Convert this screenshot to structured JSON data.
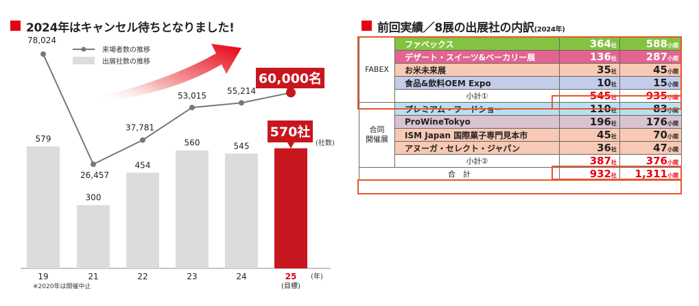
{
  "left_heading": "2024年はキャンセル待ちとなりました!",
  "right_heading": "前回実績／8展の出展社の内訳",
  "right_heading_year": "(2024年)",
  "chart_data": {
    "type": "bar",
    "categories": [
      "19",
      "21",
      "22",
      "23",
      "24",
      "25"
    ],
    "target_sublabel": "(目標)",
    "x_unit": "(年)",
    "note": "※2020年は開催中止",
    "bar_unit_label": "(社数)",
    "series": [
      {
        "name": "出展社数の推移",
        "type": "bar",
        "values": [
          579,
          300,
          454,
          560,
          545,
          570
        ]
      },
      {
        "name": "来場者数の推移",
        "type": "line",
        "values": [
          78024,
          26457,
          37781,
          53015,
          55214,
          60000
        ]
      }
    ],
    "bar_labels": [
      "579",
      "300",
      "454",
      "560",
      "545"
    ],
    "line_labels": [
      "78,024",
      "26,457",
      "37,781",
      "53,015",
      "55,214"
    ],
    "target_bar_label": "570社",
    "target_line_label": "60,000名",
    "colors": {
      "bar": "#dcdcdc",
      "target": "#c8161e",
      "line": "#777777",
      "accent": "#e60012"
    }
  },
  "table": {
    "groups": [
      {
        "label": "FABEX",
        "rows": [
          {
            "name": "ファベックス",
            "exhibitors": "364",
            "booths": "588",
            "bg": "#84c341",
            "color": "#ffffff"
          },
          {
            "name": "デザート・スイーツ&ベーカリー展",
            "exhibitors": "136",
            "booths": "287",
            "bg": "#e4648f",
            "color": "#ffffff"
          },
          {
            "name": "お米未来展",
            "exhibitors": "35",
            "booths": "45",
            "bg": "#f8c9b4",
            "color": "#222222"
          },
          {
            "name": "食品&飲料OEM Expo",
            "exhibitors": "10",
            "booths": "15",
            "bg": "#c3cdea",
            "color": "#222222"
          }
        ],
        "subtotal": {
          "label": "小計①",
          "exhibitors": "545",
          "booths": "935"
        }
      },
      {
        "label": "合同\n開催展",
        "rows": [
          {
            "name": "プレミアム・フードショー",
            "exhibitors": "110",
            "booths": "83",
            "bg": "#b9e0f0",
            "color": "#222222"
          },
          {
            "name": "ProWineTokyo",
            "exhibitors": "196",
            "booths": "176",
            "bg": "#d9c3cf",
            "color": "#222222"
          },
          {
            "name": "ISM Japan 国際菓子専門見本市",
            "exhibitors": "45",
            "booths": "70",
            "bg": "#f8c9b4",
            "color": "#222222"
          },
          {
            "name": "アヌーガ・セレクト・ジャパン",
            "exhibitors": "36",
            "booths": "47",
            "bg": "#f8c9b4",
            "color": "#222222"
          }
        ],
        "subtotal": {
          "label": "小計②",
          "exhibitors": "387",
          "booths": "376"
        }
      }
    ],
    "total": {
      "label": "合　計",
      "exhibitors": "932",
      "booths": "1,311"
    },
    "unit_exhibitors": "社",
    "unit_booths": "小間"
  }
}
